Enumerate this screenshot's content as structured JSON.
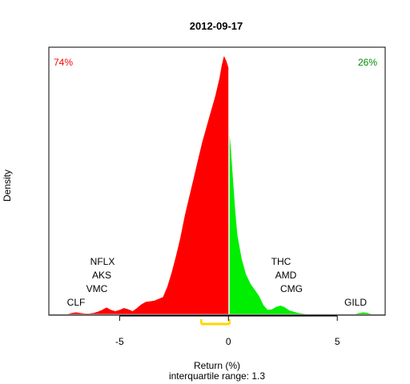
{
  "chart_data": {
    "type": "area",
    "title": "2012-09-17",
    "xlabel": "Return (%)",
    "ylabel": "Density",
    "subtitle": "interquartile range: 1.3",
    "xlim": [
      -8.25,
      7.2
    ],
    "ylim": [
      0,
      0.435
    ],
    "xticks": [
      -5,
      0,
      5
    ],
    "grid": false,
    "negative_share": "74%",
    "positive_share": "26%",
    "colors": {
      "negative": "#ff0000",
      "positive": "#00ee00",
      "iqr": "#ffd700",
      "baseline": "#bebebe",
      "neg_text": "#ff0000",
      "pos_text": "#008b00"
    },
    "interquartile_range": {
      "q1": -1.25,
      "q3": 0.05
    },
    "density": {
      "x": [
        -7.4,
        -7.2,
        -7.0,
        -6.8,
        -6.6,
        -6.4,
        -6.2,
        -6.0,
        -5.8,
        -5.6,
        -5.4,
        -5.2,
        -5.0,
        -4.8,
        -4.6,
        -4.4,
        -4.2,
        -4.0,
        -3.8,
        -3.6,
        -3.4,
        -3.2,
        -3.0,
        -2.8,
        -2.6,
        -2.4,
        -2.2,
        -2.0,
        -1.8,
        -1.6,
        -1.4,
        -1.2,
        -1.0,
        -0.8,
        -0.6,
        -0.4,
        -0.3,
        -0.2,
        -0.1,
        0.0,
        0.05,
        0.1,
        0.2,
        0.3,
        0.4,
        0.6,
        0.8,
        1.0,
        1.2,
        1.4,
        1.6,
        1.8,
        2.0,
        2.2,
        2.4,
        2.6,
        2.8,
        3.0,
        3.2,
        3.4,
        3.6,
        3.8,
        4.0,
        4.2,
        4.4,
        4.6,
        4.8,
        5.0,
        5.2,
        5.4,
        5.6,
        5.8,
        6.0,
        6.2,
        6.4,
        6.6
      ],
      "y": [
        0.0,
        0.002,
        0.003,
        0.002,
        0.001,
        0.001,
        0.002,
        0.004,
        0.007,
        0.011,
        0.007,
        0.005,
        0.007,
        0.01,
        0.008,
        0.005,
        0.01,
        0.016,
        0.02,
        0.021,
        0.022,
        0.025,
        0.028,
        0.045,
        0.068,
        0.095,
        0.125,
        0.16,
        0.19,
        0.22,
        0.25,
        0.28,
        0.305,
        0.33,
        0.355,
        0.385,
        0.405,
        0.42,
        0.412,
        0.4,
        0.29,
        0.27,
        0.22,
        0.17,
        0.13,
        0.09,
        0.065,
        0.05,
        0.04,
        0.03,
        0.015,
        0.007,
        0.008,
        0.012,
        0.014,
        0.011,
        0.006,
        0.004,
        0.002,
        0.001,
        0.0,
        0.0,
        0.0,
        0.0,
        0.0,
        0.0,
        0.0,
        0.0,
        0.0,
        0.0,
        0.0,
        0.0,
        0.002,
        0.003,
        0.002,
        0.0
      ]
    },
    "annotations": {
      "left": [
        "NFLX",
        "AKS",
        "VMC",
        "CLF"
      ],
      "right": [
        "THC",
        "AMD",
        "CMG",
        "GILD"
      ]
    }
  }
}
